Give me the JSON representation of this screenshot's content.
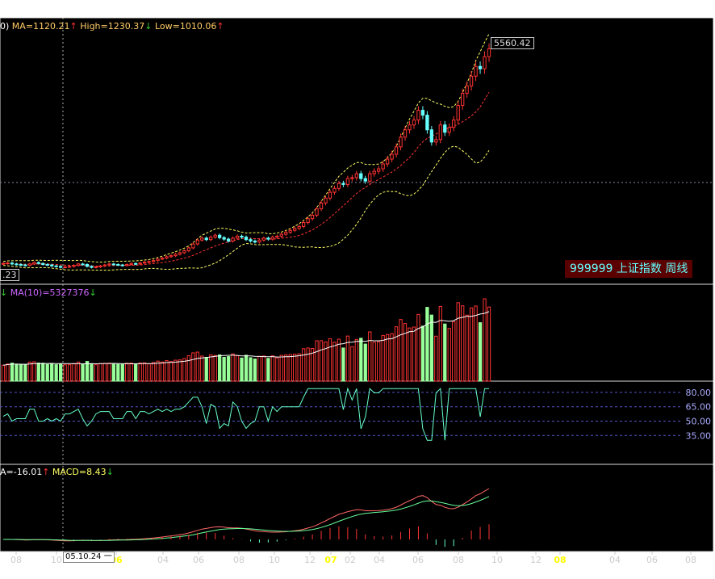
{
  "title": "999999  上证指数  周线",
  "legend_main": {
    "prefix": "0)",
    "ma": "MA=1120.21",
    "high": "High=1230.37",
    "low": "Low=1010.06"
  },
  "legend_volume": {
    "ma10": "MA(10)=5327376"
  },
  "legend_macd": {
    "dea": "A=-16.01",
    "macd": "MACD=8.43"
  },
  "max_label": "5560.42",
  "min_label": ".23",
  "cursor_date": "05.10.24 一",
  "colors": {
    "up": "#ff3333",
    "down": "#33cc33",
    "upper_band": "#ffff66",
    "mid_band": "#ff3333",
    "ma": "#ffffff",
    "panel_bg": "#000000",
    "grid": "#3a3a8a"
  },
  "chart_data": [
    {
      "type": "candlestick",
      "title": "999999 上证指数 周线",
      "x_tick_labels": [
        "08",
        "10",
        "06",
        "04",
        "06",
        "08",
        "10",
        "12",
        "07",
        "02",
        "04",
        "06",
        "08",
        "10",
        "12",
        "08",
        "04",
        "06",
        "08"
      ],
      "annotations": {
        "max": 5560.42
      },
      "close": [
        1160,
        1170,
        1150,
        1140,
        1130,
        1120,
        1150,
        1180,
        1160,
        1140,
        1130,
        1110,
        1100,
        1080,
        1090,
        1100,
        1120,
        1150,
        1140,
        1100,
        1080,
        1090,
        1110,
        1130,
        1150,
        1140,
        1130,
        1120,
        1140,
        1160,
        1150,
        1170,
        1190,
        1200,
        1220,
        1250,
        1270,
        1300,
        1320,
        1350,
        1380,
        1420,
        1480,
        1560,
        1640,
        1680,
        1650,
        1700,
        1740,
        1690,
        1660,
        1620,
        1680,
        1720,
        1700,
        1650,
        1620,
        1600,
        1640,
        1680,
        1660,
        1700,
        1720,
        1760,
        1800,
        1840,
        1880,
        1920,
        2000,
        2080,
        2150,
        2280,
        2400,
        2500,
        2620,
        2700,
        2800,
        2780,
        2900,
        2920,
        3000,
        2900,
        2850,
        3000,
        3050,
        3100,
        3200,
        3300,
        3400,
        3550,
        3750,
        3900,
        4000,
        4100,
        4300,
        4200,
        3900,
        3650,
        3700,
        4000,
        3850,
        3950,
        4100,
        4400,
        4650,
        4800,
        5000,
        5200,
        5150,
        5400,
        5560
      ]
    },
    {
      "type": "bar",
      "title": "MA(10)=5327376"
    },
    {
      "type": "line",
      "y_tick_labels": [
        "80.00",
        "65.00",
        "50.00",
        "35.00"
      ]
    },
    {
      "type": "line",
      "title": "MACD",
      "series": [
        {
          "name": "A=-16.01"
        },
        {
          "name": "MACD=8.43"
        }
      ]
    }
  ]
}
